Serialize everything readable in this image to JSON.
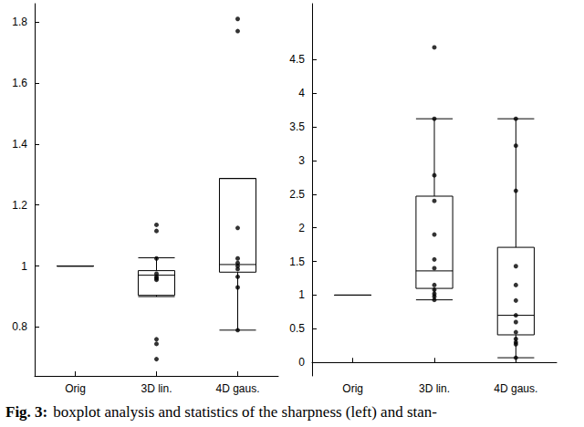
{
  "chart_data": [
    {
      "type": "boxplot",
      "categories": [
        "Orig",
        "3D lin.",
        "4D gaus."
      ],
      "boxes": [
        [
          1,
          1,
          1,
          1,
          1
        ],
        [
          0.9,
          0.904,
          0.97,
          0.985,
          1.027
        ],
        [
          0.79,
          0.98,
          1.005,
          1.287,
          1.287
        ]
      ],
      "points": [
        [],
        [
          1.135,
          1.115,
          1.025,
          0.975,
          0.965,
          0.96,
          0.955,
          0.76,
          0.745,
          0.695
        ],
        [
          1.81,
          1.77,
          1.125,
          1.025,
          1.01,
          1.0,
          0.99,
          0.965,
          0.93,
          0.79
        ]
      ],
      "color": "#000000",
      "ylim": [
        0.64,
        1.86
      ],
      "yticks": [
        0.8,
        1,
        1.2,
        1.4,
        1.6,
        1.8
      ]
    },
    {
      "type": "boxplot",
      "categories": [
        "Orig",
        "3D lin.",
        "4D gaus."
      ],
      "boxes": [
        [
          1,
          1,
          1,
          1,
          1
        ],
        [
          0.93,
          1.1,
          1.36,
          2.47,
          3.62
        ],
        [
          0.07,
          0.41,
          0.7,
          1.71,
          3.62
        ]
      ],
      "points": [
        [],
        [
          4.68,
          3.62,
          2.78,
          2.4,
          1.9,
          1.53,
          1.4,
          1.15,
          1.08,
          1.02,
          0.98,
          0.93
        ],
        [
          3.62,
          3.22,
          2.55,
          1.43,
          1.15,
          0.92,
          0.7,
          0.6,
          0.45,
          0.35,
          0.3,
          0.27,
          0.07
        ]
      ],
      "color": "#000000",
      "ylim": [
        -0.2,
        5.33
      ],
      "yticks": [
        0,
        0.5,
        1,
        1.5,
        2,
        2.5,
        3,
        3.5,
        4,
        4.5
      ]
    }
  ],
  "caption": {
    "label": "Fig. 3:",
    "text": "boxplot analysis and statistics of the sharpness (left) and stan-"
  }
}
